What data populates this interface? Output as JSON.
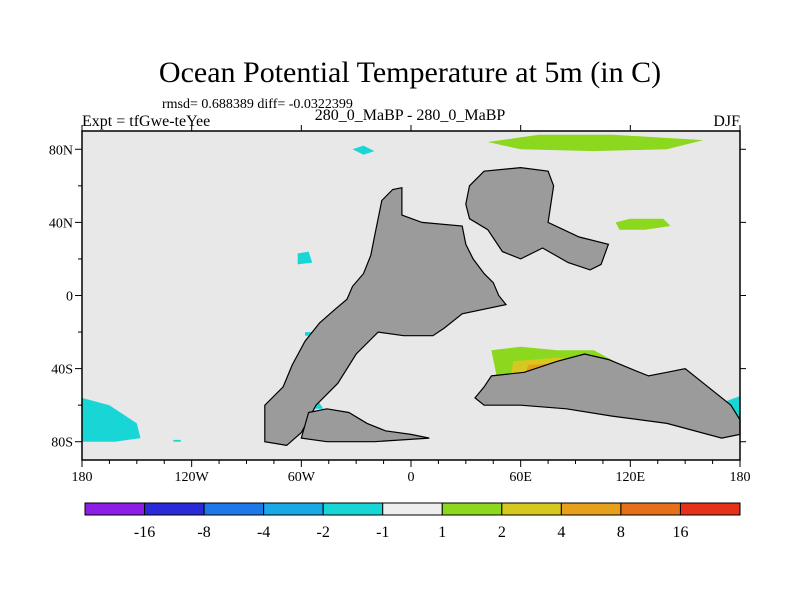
{
  "chart_data": {
    "type": "heatmap",
    "title": "Ocean Potential Temperature at 5m (in C)",
    "stats": "rmsd= 0.688389 diff= -0.0322399",
    "experiment": "Expt = tfGwe-teYee",
    "comparison": "280_0_MaBP - 280_0_MaBP",
    "season": "DJF",
    "x_ticks": [
      "180",
      "120W",
      "60W",
      "0",
      "60E",
      "120E",
      "180"
    ],
    "x_tick_values": [
      -180,
      -120,
      -60,
      0,
      60,
      120,
      180
    ],
    "y_ticks": [
      "80N",
      "40N",
      "0",
      "40S",
      "80S"
    ],
    "y_tick_values": [
      80,
      40,
      0,
      -40,
      -80
    ],
    "xlim": [
      -180,
      180
    ],
    "ylim": [
      -90,
      90
    ],
    "colorbar": {
      "labels": [
        "-16",
        "-8",
        "-4",
        "-2",
        "-1",
        "1",
        "2",
        "4",
        "8",
        "16"
      ],
      "colors": [
        "#8c1ee6",
        "#2a2ad8",
        "#1f78e8",
        "#19a9e6",
        "#19d6d6",
        "#eeeeee",
        "#8cd81e",
        "#d6c81e",
        "#e6a019",
        "#e66f19",
        "#e63019"
      ]
    },
    "colors": {
      "ocean_zero": "#e8e8e8",
      "land": "#9b9b9b",
      "coast": "#000000"
    },
    "land": [
      {
        "name": "americas",
        "points": [
          [
            -68,
            -82
          ],
          [
            -80,
            -80
          ],
          [
            -80,
            -60
          ],
          [
            -70,
            -50
          ],
          [
            -65,
            -38
          ],
          [
            -58,
            -25
          ],
          [
            -50,
            -15
          ],
          [
            -42,
            -8
          ],
          [
            -35,
            -2
          ],
          [
            -32,
            5
          ],
          [
            -26,
            12
          ],
          [
            -22,
            22
          ],
          [
            -20,
            32
          ],
          [
            -18,
            42
          ],
          [
            -16,
            52
          ],
          [
            -10,
            58
          ],
          [
            -5,
            59
          ],
          [
            -5,
            44
          ],
          [
            6,
            40
          ],
          [
            28,
            38
          ],
          [
            30,
            28
          ],
          [
            34,
            20
          ],
          [
            40,
            12
          ],
          [
            45,
            7
          ],
          [
            48,
            0
          ],
          [
            52,
            -5
          ],
          [
            28,
            -10
          ],
          [
            18,
            -18
          ],
          [
            12,
            -22
          ],
          [
            -4,
            -22
          ],
          [
            -18,
            -20
          ],
          [
            -30,
            -32
          ],
          [
            -40,
            -48
          ],
          [
            -52,
            -60
          ],
          [
            -60,
            -75
          ]
        ]
      },
      {
        "name": "eurasia",
        "points": [
          [
            30,
            50
          ],
          [
            32,
            60
          ],
          [
            40,
            68
          ],
          [
            60,
            70
          ],
          [
            75,
            68
          ],
          [
            78,
            60
          ],
          [
            75,
            40
          ],
          [
            92,
            32
          ],
          [
            108,
            28
          ],
          [
            104,
            17
          ],
          [
            98,
            14
          ],
          [
            86,
            18
          ],
          [
            72,
            26
          ],
          [
            60,
            20
          ],
          [
            50,
            24
          ],
          [
            42,
            36
          ],
          [
            32,
            42
          ]
        ]
      },
      {
        "name": "australia_antarctic",
        "points": [
          [
            44,
            -44
          ],
          [
            62,
            -42
          ],
          [
            80,
            -36
          ],
          [
            95,
            -32
          ],
          [
            108,
            -35
          ],
          [
            120,
            -40
          ],
          [
            130,
            -44
          ],
          [
            140,
            -42
          ],
          [
            150,
            -40
          ],
          [
            160,
            -48
          ],
          [
            175,
            -60
          ],
          [
            180,
            -68
          ],
          [
            180,
            -76
          ],
          [
            170,
            -78
          ],
          [
            140,
            -70
          ],
          [
            110,
            -66
          ],
          [
            85,
            -62
          ],
          [
            60,
            -60
          ],
          [
            40,
            -60
          ],
          [
            35,
            -56
          ],
          [
            40,
            -50
          ]
        ]
      },
      {
        "name": "antarctic_peninsula",
        "points": [
          [
            -56,
            -64
          ],
          [
            -46,
            -62
          ],
          [
            -34,
            -64
          ],
          [
            -24,
            -70
          ],
          [
            -14,
            -74
          ],
          [
            0,
            -76
          ],
          [
            10,
            -78
          ],
          [
            -20,
            -80
          ],
          [
            -46,
            -80
          ],
          [
            -60,
            -78
          ]
        ]
      }
    ],
    "anomalies": [
      {
        "value": -1.5,
        "color": "#19d6d6",
        "points": [
          [
            -180,
            -56
          ],
          [
            -165,
            -60
          ],
          [
            -150,
            -70
          ],
          [
            -148,
            -78
          ],
          [
            -162,
            -80
          ],
          [
            -180,
            -80
          ]
        ]
      },
      {
        "value": -1.5,
        "color": "#19d6d6",
        "points": [
          [
            -32,
            80
          ],
          [
            -26,
            77
          ],
          [
            -20,
            79
          ],
          [
            -26,
            82
          ]
        ]
      },
      {
        "value": -1.5,
        "color": "#19d6d6",
        "points": [
          [
            -58,
            -20
          ],
          [
            -50,
            -20
          ],
          [
            -50,
            -22
          ],
          [
            -58,
            -22
          ]
        ]
      },
      {
        "value": -1.5,
        "color": "#19d6d6",
        "points": [
          [
            -62,
            23
          ],
          [
            -56,
            24
          ],
          [
            -54,
            18
          ],
          [
            -62,
            17
          ]
        ]
      },
      {
        "value": -1.5,
        "color": "#19d6d6",
        "points": [
          [
            -62,
            -58
          ],
          [
            -52,
            -56
          ],
          [
            -48,
            -62
          ],
          [
            -60,
            -62
          ]
        ]
      },
      {
        "value": -1.5,
        "color": "#19d6d6",
        "points": [
          [
            -130,
            -79
          ],
          [
            -126,
            -79
          ],
          [
            -126,
            -80
          ],
          [
            -130,
            -80
          ]
        ]
      },
      {
        "value": -1.5,
        "color": "#19d6d6",
        "points": [
          [
            172,
            -58
          ],
          [
            180,
            -55
          ],
          [
            180,
            -75
          ],
          [
            172,
            -72
          ]
        ]
      },
      {
        "value": 1.5,
        "color": "#8cd81e",
        "points": [
          [
            42,
            84
          ],
          [
            70,
            88
          ],
          [
            110,
            88
          ],
          [
            160,
            85
          ],
          [
            140,
            80
          ],
          [
            100,
            79
          ],
          [
            60,
            80
          ]
        ]
      },
      {
        "value": 1.5,
        "color": "#8cd81e",
        "points": [
          [
            112,
            40
          ],
          [
            120,
            42
          ],
          [
            138,
            42
          ],
          [
            142,
            38
          ],
          [
            128,
            36
          ],
          [
            114,
            36
          ]
        ]
      },
      {
        "value": 1.5,
        "color": "#8cd81e",
        "points": [
          [
            44,
            -30
          ],
          [
            60,
            -28
          ],
          [
            80,
            -30
          ],
          [
            100,
            -30
          ],
          [
            115,
            -38
          ],
          [
            120,
            -44
          ],
          [
            110,
            -50
          ],
          [
            94,
            -56
          ],
          [
            80,
            -60
          ],
          [
            66,
            -58
          ],
          [
            56,
            -56
          ],
          [
            48,
            -50
          ],
          [
            46,
            -40
          ]
        ]
      },
      {
        "value": 1.5,
        "color": "#8cd81e",
        "points": [
          [
            -58,
            -67
          ],
          [
            -42,
            -66
          ],
          [
            -30,
            -70
          ],
          [
            -40,
            -74
          ],
          [
            -56,
            -72
          ]
        ]
      },
      {
        "value": 3,
        "color": "#d6c81e",
        "points": [
          [
            56,
            -36
          ],
          [
            80,
            -34
          ],
          [
            100,
            -36
          ],
          [
            110,
            -44
          ],
          [
            98,
            -50
          ],
          [
            80,
            -56
          ],
          [
            62,
            -56
          ],
          [
            54,
            -48
          ]
        ]
      },
      {
        "value": 3,
        "color": "#d6c81e",
        "points": [
          [
            -50,
            -66
          ],
          [
            -40,
            -66
          ],
          [
            -36,
            -70
          ],
          [
            -48,
            -72
          ]
        ]
      },
      {
        "value": 6,
        "color": "#e6a019",
        "points": [
          [
            64,
            -38
          ],
          [
            80,
            -37
          ],
          [
            90,
            -42
          ],
          [
            84,
            -50
          ],
          [
            70,
            -52
          ],
          [
            62,
            -46
          ]
        ]
      }
    ]
  }
}
